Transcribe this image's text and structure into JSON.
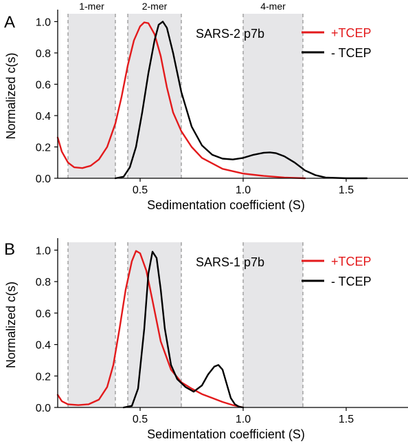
{
  "chart_data": [
    {
      "type": "line",
      "panel_label": "A",
      "title": "SARS-2 p7b",
      "xlabel": "Sedimentation coefficient (S)",
      "ylabel": "Normalized c(s)",
      "xlim": [
        0.1,
        1.8
      ],
      "ylim": [
        0,
        1.05
      ],
      "x_ticks": [
        "0.5",
        "1.0",
        "1.5"
      ],
      "y_ticks": [
        "0.0",
        "0.2",
        "0.4",
        "0.6",
        "0.8",
        "1.0"
      ],
      "grid": false,
      "legend_position": "top-right",
      "shaded_regions": [
        {
          "label": "1-mer",
          "x": [
            0.15,
            0.38
          ]
        },
        {
          "label": "2-mer",
          "x": [
            0.44,
            0.7
          ]
        },
        {
          "label": "4-mer",
          "x": [
            1.0,
            1.29
          ]
        }
      ],
      "series": [
        {
          "name": "+TCEP",
          "color": "#e31a1c",
          "x": [
            0.1,
            0.12,
            0.15,
            0.18,
            0.22,
            0.26,
            0.3,
            0.34,
            0.38,
            0.41,
            0.44,
            0.47,
            0.5,
            0.52,
            0.54,
            0.57,
            0.6,
            0.63,
            0.66,
            0.7,
            0.75,
            0.8,
            0.9,
            1.0,
            1.1,
            1.2,
            1.3
          ],
          "values": [
            0.26,
            0.17,
            0.1,
            0.07,
            0.065,
            0.08,
            0.12,
            0.2,
            0.35,
            0.52,
            0.72,
            0.88,
            0.97,
            0.995,
            0.99,
            0.92,
            0.78,
            0.58,
            0.42,
            0.3,
            0.2,
            0.13,
            0.06,
            0.03,
            0.015,
            0.005,
            0.0
          ]
        },
        {
          "name": "- TCEP",
          "color": "#000000",
          "x": [
            0.38,
            0.42,
            0.45,
            0.48,
            0.51,
            0.54,
            0.57,
            0.59,
            0.61,
            0.63,
            0.66,
            0.7,
            0.75,
            0.8,
            0.85,
            0.9,
            0.95,
            1.0,
            1.05,
            1.1,
            1.13,
            1.16,
            1.2,
            1.25,
            1.3,
            1.35,
            1.4,
            1.5,
            1.6
          ],
          "values": [
            0.0,
            0.01,
            0.07,
            0.2,
            0.42,
            0.67,
            0.88,
            0.98,
            1.0,
            0.96,
            0.8,
            0.55,
            0.33,
            0.21,
            0.15,
            0.125,
            0.12,
            0.13,
            0.15,
            0.163,
            0.165,
            0.16,
            0.14,
            0.1,
            0.05,
            0.02,
            0.005,
            0.0,
            0.0
          ]
        }
      ]
    },
    {
      "type": "line",
      "panel_label": "B",
      "title": "SARS-1 p7b",
      "xlabel": "Sedimentation coefficient (S)",
      "ylabel": "Normalized c(s)",
      "xlim": [
        0.1,
        1.8
      ],
      "ylim": [
        0,
        1.05
      ],
      "x_ticks": [
        "0.5",
        "1.0",
        "1.5"
      ],
      "y_ticks": [
        "0.0",
        "0.2",
        "0.4",
        "0.6",
        "0.8",
        "1.0"
      ],
      "grid": false,
      "legend_position": "top-right",
      "shaded_regions": [
        {
          "label": "",
          "x": [
            0.15,
            0.38
          ]
        },
        {
          "label": "",
          "x": [
            0.44,
            0.7
          ]
        },
        {
          "label": "",
          "x": [
            1.0,
            1.29
          ]
        }
      ],
      "series": [
        {
          "name": "+TCEP",
          "color": "#e31a1c",
          "x": [
            0.1,
            0.12,
            0.15,
            0.2,
            0.25,
            0.3,
            0.34,
            0.37,
            0.4,
            0.43,
            0.46,
            0.48,
            0.5,
            0.53,
            0.56,
            0.6,
            0.65,
            0.7,
            0.75,
            0.8,
            0.85,
            0.9,
            0.95,
            1.0
          ],
          "values": [
            0.08,
            0.04,
            0.02,
            0.015,
            0.02,
            0.05,
            0.13,
            0.27,
            0.5,
            0.75,
            0.93,
            0.995,
            0.98,
            0.87,
            0.68,
            0.42,
            0.24,
            0.16,
            0.12,
            0.085,
            0.06,
            0.035,
            0.015,
            0.0
          ]
        },
        {
          "name": "- TCEP",
          "color": "#000000",
          "x": [
            0.42,
            0.46,
            0.49,
            0.52,
            0.54,
            0.56,
            0.58,
            0.6,
            0.62,
            0.65,
            0.68,
            0.72,
            0.76,
            0.8,
            0.83,
            0.86,
            0.88,
            0.9,
            0.92,
            0.94,
            0.96,
            0.98,
            1.0
          ],
          "values": [
            0.0,
            0.01,
            0.12,
            0.5,
            0.85,
            0.99,
            0.95,
            0.75,
            0.5,
            0.27,
            0.18,
            0.13,
            0.1,
            0.14,
            0.21,
            0.26,
            0.27,
            0.24,
            0.15,
            0.06,
            0.02,
            0.005,
            0.0
          ]
        }
      ]
    }
  ]
}
